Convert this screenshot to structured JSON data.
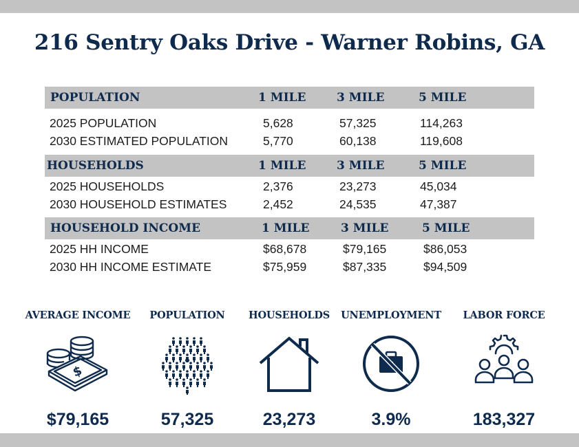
{
  "title": "216 Sentry Oaks Drive - Warner Robins, GA",
  "sections": [
    {
      "heading": "POPULATION",
      "cols": [
        "1 MILE",
        "3 MILE",
        "5 MILE"
      ],
      "rows": [
        {
          "label": "2025 POPULATION",
          "values": [
            "5,628",
            "57,325",
            "114,263"
          ]
        },
        {
          "label": "2030 ESTIMATED POPULATION",
          "values": [
            "5,770",
            "60,138",
            "119,608"
          ]
        }
      ]
    },
    {
      "heading": "HOUSEHOLDS",
      "cols": [
        "1 MILE",
        "3 MILE",
        "5 MILE"
      ],
      "rows": [
        {
          "label": "2025 HOUSEHOLDS",
          "values": [
            "2,376",
            "23,273",
            "45,034"
          ]
        },
        {
          "label": "2030 HOUSEHOLD ESTIMATES",
          "values": [
            "2,452",
            "24,535",
            "47,387"
          ]
        }
      ]
    },
    {
      "heading": "HOUSEHOLD INCOME",
      "cols": [
        "1 MILE",
        "3 MILE",
        "5 MILE"
      ],
      "rows": [
        {
          "label": "2025 HH INCOME",
          "values": [
            "$68,678",
            "$79,165",
            "$86,053"
          ]
        },
        {
          "label": "2030 HH INCOME ESTIMATE",
          "values": [
            "$75,959",
            "$87,335",
            "$94,509"
          ]
        }
      ]
    }
  ],
  "stats": [
    {
      "label": "AVERAGE INCOME",
      "value": "$79,165",
      "icon": "money-coins-icon"
    },
    {
      "label": "POPULATION",
      "value": "57,325",
      "icon": "people-crowd-icon"
    },
    {
      "label": "HOUSEHOLDS",
      "value": "23,273",
      "icon": "house-icon"
    },
    {
      "label": "UNEMPLOYMENT",
      "value": "3.9%",
      "icon": "no-briefcase-icon"
    },
    {
      "label": "LABOR FORCE",
      "value": "183,327",
      "icon": "workers-gear-icon"
    }
  ],
  "colors": {
    "navy": "#0e2a4d",
    "gray_band": "#c3c3c3",
    "text": "#1c1c1c"
  }
}
